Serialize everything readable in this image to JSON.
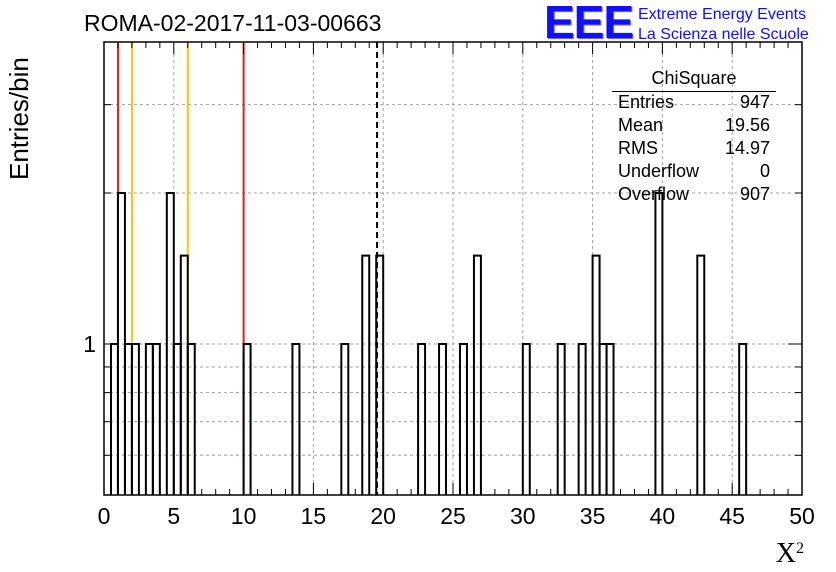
{
  "title": "ROMA-02-2017-11-03-00663",
  "logo": {
    "mark": "EEE",
    "line1": "Extreme Energy Events",
    "line2": "La Scienza nelle Scuole"
  },
  "stats": {
    "title": "ChiSquare",
    "rows": [
      {
        "label": "Entries",
        "value": "947"
      },
      {
        "label": "Mean",
        "value": "19.56"
      },
      {
        "label": "RMS",
        "value": "14.97"
      },
      {
        "label": "Underflow",
        "value": "0"
      },
      {
        "label": "Overflow",
        "value": "907"
      }
    ]
  },
  "colors": {
    "red": "#e0201a",
    "yellow": "#f5c518",
    "histogram": "#000000",
    "grid": "#a0a0a0",
    "logo": "#1010ff"
  },
  "chart_data": {
    "type": "bar",
    "histogram": "step",
    "title": "ROMA-02-2017-11-03-00663",
    "xlabel": "X",
    "xlabel_superscript": "2",
    "ylabel": "Entries/bin",
    "xlim": [
      0,
      50
    ],
    "ylim": [
      0.5,
      4
    ],
    "yscale": "log",
    "grid": true,
    "bin_width": 0.5,
    "x_ticks": [
      0,
      5,
      10,
      15,
      20,
      25,
      30,
      35,
      40,
      45,
      50
    ],
    "y_tick_labels": [
      {
        "value": 1,
        "label": "1"
      }
    ],
    "bins": [
      {
        "x": 0.5,
        "value": 1
      },
      {
        "x": 1.0,
        "value": 2
      },
      {
        "x": 1.5,
        "value": 1
      },
      {
        "x": 2.0,
        "value": 1
      },
      {
        "x": 3.0,
        "value": 1
      },
      {
        "x": 3.5,
        "value": 1
      },
      {
        "x": 4.5,
        "value": 2
      },
      {
        "x": 5.0,
        "value": 1
      },
      {
        "x": 5.5,
        "value": 1.5
      },
      {
        "x": 6.0,
        "value": 1
      },
      {
        "x": 10.0,
        "value": 1
      },
      {
        "x": 13.5,
        "value": 1
      },
      {
        "x": 17.0,
        "value": 1
      },
      {
        "x": 18.5,
        "value": 1.5
      },
      {
        "x": 19.5,
        "value": 1.5
      },
      {
        "x": 22.5,
        "value": 1
      },
      {
        "x": 24.0,
        "value": 1
      },
      {
        "x": 25.5,
        "value": 1
      },
      {
        "x": 26.5,
        "value": 1.5
      },
      {
        "x": 30.0,
        "value": 1
      },
      {
        "x": 32.5,
        "value": 1
      },
      {
        "x": 34.0,
        "value": 1
      },
      {
        "x": 35.0,
        "value": 1.5
      },
      {
        "x": 35.5,
        "value": 1
      },
      {
        "x": 36.0,
        "value": 1
      },
      {
        "x": 39.5,
        "value": 2
      },
      {
        "x": 42.5,
        "value": 1.5
      },
      {
        "x": 45.5,
        "value": 1
      }
    ],
    "vertical_lines": [
      {
        "x": 1,
        "color": "red",
        "style": "solid"
      },
      {
        "x": 2,
        "color": "yellow",
        "style": "solid"
      },
      {
        "x": 6,
        "color": "yellow",
        "style": "solid"
      },
      {
        "x": 10,
        "color": "red",
        "style": "solid"
      },
      {
        "x": 19.56,
        "color": "black",
        "style": "dashed"
      }
    ]
  }
}
